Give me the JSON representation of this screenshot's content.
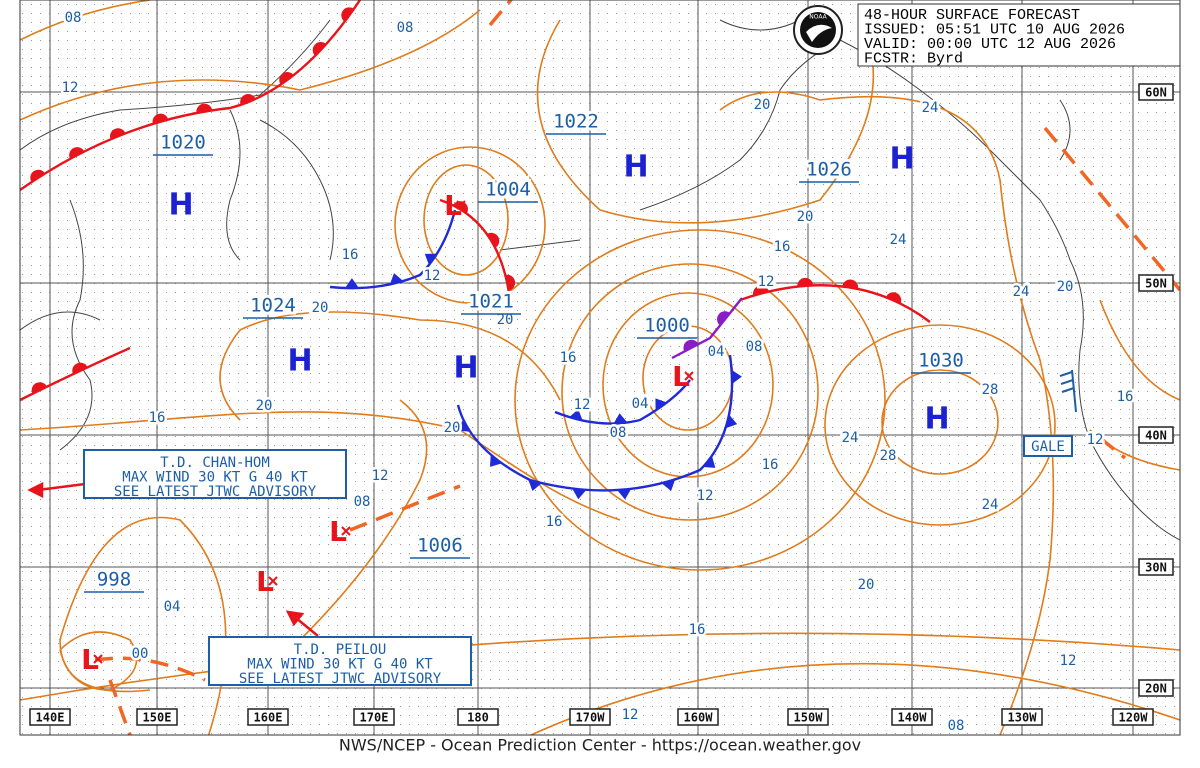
{
  "header": {
    "logo": "NOAA",
    "lines": [
      "48-HOUR SURFACE FORECAST",
      "ISSUED: 05:51 UTC 10 AUG 2026",
      "VALID:  00:00 UTC 12 AUG 2026",
      "FCSTR:  Byrd"
    ]
  },
  "map": {
    "latitude_labels": [
      "60N",
      "50N",
      "40N",
      "30N",
      "20N"
    ],
    "longitude_labels": [
      "140E",
      "150E",
      "160E",
      "170E",
      "180",
      "170W",
      "160W",
      "150W",
      "140W",
      "130W",
      "120W"
    ],
    "pressure_labels": [
      "1020",
      "1022",
      "1004",
      "1026",
      "1024",
      "1021",
      "1000",
      "1030",
      "1006",
      "998"
    ],
    "high_symbols": [
      "H",
      "H",
      "H",
      "H",
      "H",
      "H"
    ],
    "low_symbols": [
      "L",
      "L",
      "L",
      "L",
      "L"
    ],
    "isobar_labels": [
      "08",
      "08",
      "12",
      "20",
      "24",
      "20",
      "16",
      "24",
      "16",
      "12",
      "12",
      "20",
      "20",
      "24",
      "20",
      "16",
      "04",
      "08",
      "28",
      "12",
      "04",
      "08",
      "20",
      "16",
      "20",
      "16",
      "12",
      "24",
      "28",
      "16",
      "12",
      "08",
      "12",
      "16",
      "24",
      "20",
      "04",
      "16",
      "00",
      "12",
      "12",
      "08"
    ],
    "advisories": [
      {
        "lines": [
          "T.D. CHAN-HOM",
          "MAX WIND 30 KT G 40 KT",
          "SEE LATEST JTWC ADVISORY"
        ]
      },
      {
        "lines": [
          "T.D. PEILOU",
          "MAX WIND 30 KT G 40 KT",
          "SEE LATEST JTWC ADVISORY"
        ]
      }
    ],
    "warning": "GALE"
  },
  "footer": "NWS/NCEP - Ocean Prediction Center - https://ocean.weather.gov"
}
